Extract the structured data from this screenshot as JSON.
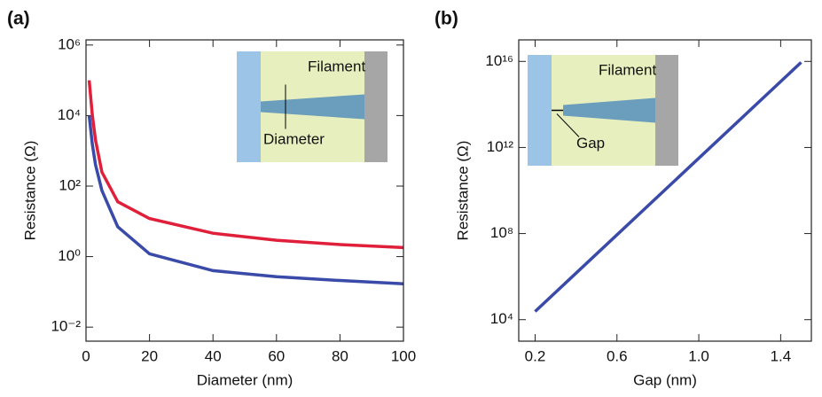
{
  "chart_data": [
    {
      "type": "line",
      "panel_label": "(a)",
      "xlabel": "Diameter (nm)",
      "ylabel": "Resistance (Ω)",
      "log_y": true,
      "xlim": [
        0,
        100
      ],
      "ylim": [
        0.004,
        1400000
      ],
      "xticks": [
        0,
        20,
        40,
        60,
        80,
        100
      ],
      "yticks": [
        {
          "value": 0.01,
          "label": "10⁻²"
        },
        {
          "value": 1,
          "label": "10⁰"
        },
        {
          "value": 100,
          "label": "10²"
        },
        {
          "value": 10000,
          "label": "10⁴"
        },
        {
          "value": 1000000,
          "label": "10⁶"
        }
      ],
      "x": [
        1,
        2,
        3,
        5,
        10,
        20,
        40,
        60,
        80,
        100
      ],
      "series": [
        {
          "color": "#e0203a",
          "values": [
            100000,
            10000,
            2000,
            250,
            36,
            12,
            4.6,
            2.9,
            2.2,
            1.8
          ]
        },
        {
          "color": "#3a4aa8",
          "values": [
            10000,
            1500,
            400,
            75,
            7,
            1.2,
            0.4,
            0.27,
            0.21,
            0.17
          ]
        }
      ],
      "inset": {
        "labels": [
          "Filament",
          "Diameter"
        ]
      }
    },
    {
      "type": "line",
      "panel_label": "(b)",
      "xlabel": "Gap (nm)",
      "ylabel": "Resistance (Ω)",
      "log_y": true,
      "xlim": [
        0.12,
        1.55
      ],
      "ylim": [
        1000,
        100000000000000000
      ],
      "xticks": [
        0.2,
        0.6,
        {
          "value": 1,
          "label": "1.0"
        },
        1.4
      ],
      "yticks": [
        {
          "value": 10000,
          "label": "10⁴"
        },
        {
          "value": 100000000,
          "label": "10⁸"
        },
        {
          "value": 1000000000000,
          "label": "10¹²"
        },
        {
          "value": 10000000000000000,
          "label": "10¹⁶"
        }
      ],
      "x": [
        0.2,
        1.5
      ],
      "series": [
        {
          "color": "#3a4aa8",
          "values": [
            24000,
            9000000000000000
          ]
        }
      ],
      "inset": {
        "labels": [
          "Filament",
          "Gap"
        ]
      }
    }
  ]
}
